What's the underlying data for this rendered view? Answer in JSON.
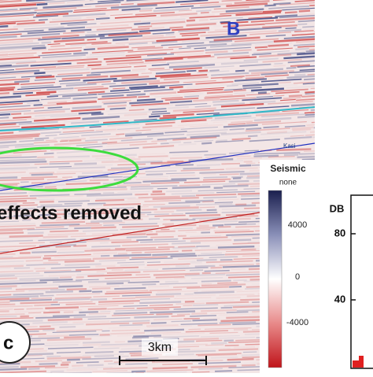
{
  "panel": {
    "label": "B",
    "annotation": "effects removed",
    "corner_label": "c",
    "scale_bar": "3km",
    "horizon_label": "Kasi"
  },
  "colorbar": {
    "title": "Seismic",
    "subtitle": "none",
    "ticks": [
      "4000",
      "0",
      "-4000"
    ]
  },
  "side_panel": {
    "title": "DB",
    "ticks": [
      "80",
      "40"
    ]
  }
}
